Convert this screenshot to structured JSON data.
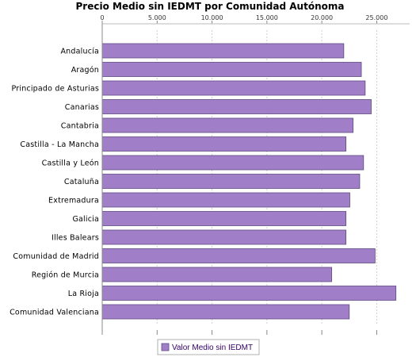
{
  "chart_data": {
    "type": "bar",
    "orientation": "horizontal",
    "title": "Precio Medio sin IEDMT por Comunidad Autónoma",
    "categories": [
      "Andalucía",
      "Aragón",
      "Principado de Asturias",
      "Canarias",
      "Cantabria",
      "Castilla - La Mancha",
      "Castilla y León",
      "Cataluña",
      "Extremadura",
      "Galicia",
      "Illes Balears",
      "Comunidad de Madrid",
      "Región de Murcia",
      "La Rioja",
      "Comunidad Valenciana"
    ],
    "series": [
      {
        "name": "Valor Medio sin IEDMT",
        "color": "#a07fc8",
        "values": [
          22000,
          23600,
          23950,
          24500,
          22850,
          22200,
          23800,
          23450,
          22550,
          22200,
          22200,
          24850,
          20900,
          26750,
          22500
        ]
      }
    ],
    "xlim": [
      0,
      28000
    ],
    "xticks": [
      0,
      5000,
      10000,
      15000,
      20000,
      25000
    ],
    "xtick_labels": [
      "0",
      "5.000",
      "10.000",
      "15.000",
      "20.000",
      "25.000"
    ],
    "xlabel": "",
    "ylabel": "",
    "grid": "vertical dashed",
    "legend_position": "bottom-center"
  }
}
